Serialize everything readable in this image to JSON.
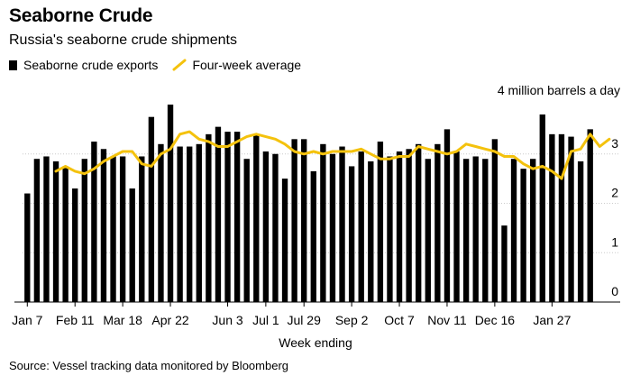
{
  "title": "Seaborne Crude",
  "subtitle": "Russia's seaborne crude shipments",
  "legend": {
    "bars_label": "Seaborne crude exports",
    "line_label": "Four-week average"
  },
  "source": "Source: Vessel tracking data monitored by Bloomberg",
  "colors": {
    "bars": "#000000",
    "line": "#f4c20d",
    "gridline": "#cccccc",
    "baseline": "#000000"
  },
  "chart_data": {
    "type": "bar",
    "title": "Russia's seaborne crude shipments",
    "unit_label": "4 million barrels a day",
    "xlabel": "Week ending",
    "ylabel": "",
    "ylim": [
      0,
      4
    ],
    "yticks": [
      0,
      1,
      2,
      3
    ],
    "xtick_labels": [
      {
        "label": "Jan 7",
        "index": 0
      },
      {
        "label": "Feb 11",
        "index": 5
      },
      {
        "label": "Mar 18",
        "index": 10
      },
      {
        "label": "Apr 22",
        "index": 15
      },
      {
        "label": "Jun 3",
        "index": 21
      },
      {
        "label": "Jul 1",
        "index": 25
      },
      {
        "label": "Jul 29",
        "index": 29
      },
      {
        "label": "Sep 2",
        "index": 34
      },
      {
        "label": "Oct 7",
        "index": 39
      },
      {
        "label": "Nov 11",
        "index": 44
      },
      {
        "label": "Dec 16",
        "index": 49
      },
      {
        "label": "Jan 27",
        "index": 55
      }
    ],
    "series": [
      {
        "name": "Seaborne crude exports",
        "type": "bar",
        "values": [
          2.2,
          2.9,
          2.95,
          2.85,
          2.75,
          2.3,
          2.9,
          3.25,
          3.1,
          2.95,
          2.95,
          2.3,
          2.95,
          3.75,
          3.2,
          4.0,
          3.15,
          3.15,
          3.2,
          3.4,
          3.55,
          3.45,
          3.45,
          2.9,
          3.4,
          3.05,
          3.0,
          2.5,
          3.3,
          3.3,
          2.65,
          3.2,
          3.0,
          3.15,
          2.75,
          3.05,
          2.85,
          3.25,
          2.95,
          3.05,
          3.1,
          3.2,
          2.9,
          3.2,
          3.5,
          3.05,
          2.9,
          2.95,
          2.9,
          3.3,
          1.55,
          2.9,
          2.7,
          2.9,
          3.8,
          3.4,
          3.4,
          3.35,
          2.85,
          3.5
        ]
      },
      {
        "name": "Four-week average",
        "type": "line",
        "start_index": 3,
        "values": [
          2.65,
          2.75,
          2.65,
          2.6,
          2.7,
          2.85,
          2.95,
          3.05,
          3.05,
          2.8,
          2.75,
          3.0,
          3.1,
          3.4,
          3.45,
          3.3,
          3.25,
          3.15,
          3.15,
          3.25,
          3.35,
          3.4,
          3.35,
          3.3,
          3.2,
          3.05,
          3.0,
          3.05,
          3.0,
          3.05,
          3.05,
          3.05,
          3.1,
          3.0,
          2.9,
          2.9,
          2.95,
          2.95,
          3.15,
          3.1,
          3.05,
          3.0,
          3.05,
          3.2,
          3.15,
          3.1,
          3.05,
          2.95,
          2.95,
          2.8,
          2.7,
          2.75,
          2.65,
          2.5,
          3.05,
          3.1,
          3.4,
          3.15,
          3.3
        ]
      }
    ]
  }
}
